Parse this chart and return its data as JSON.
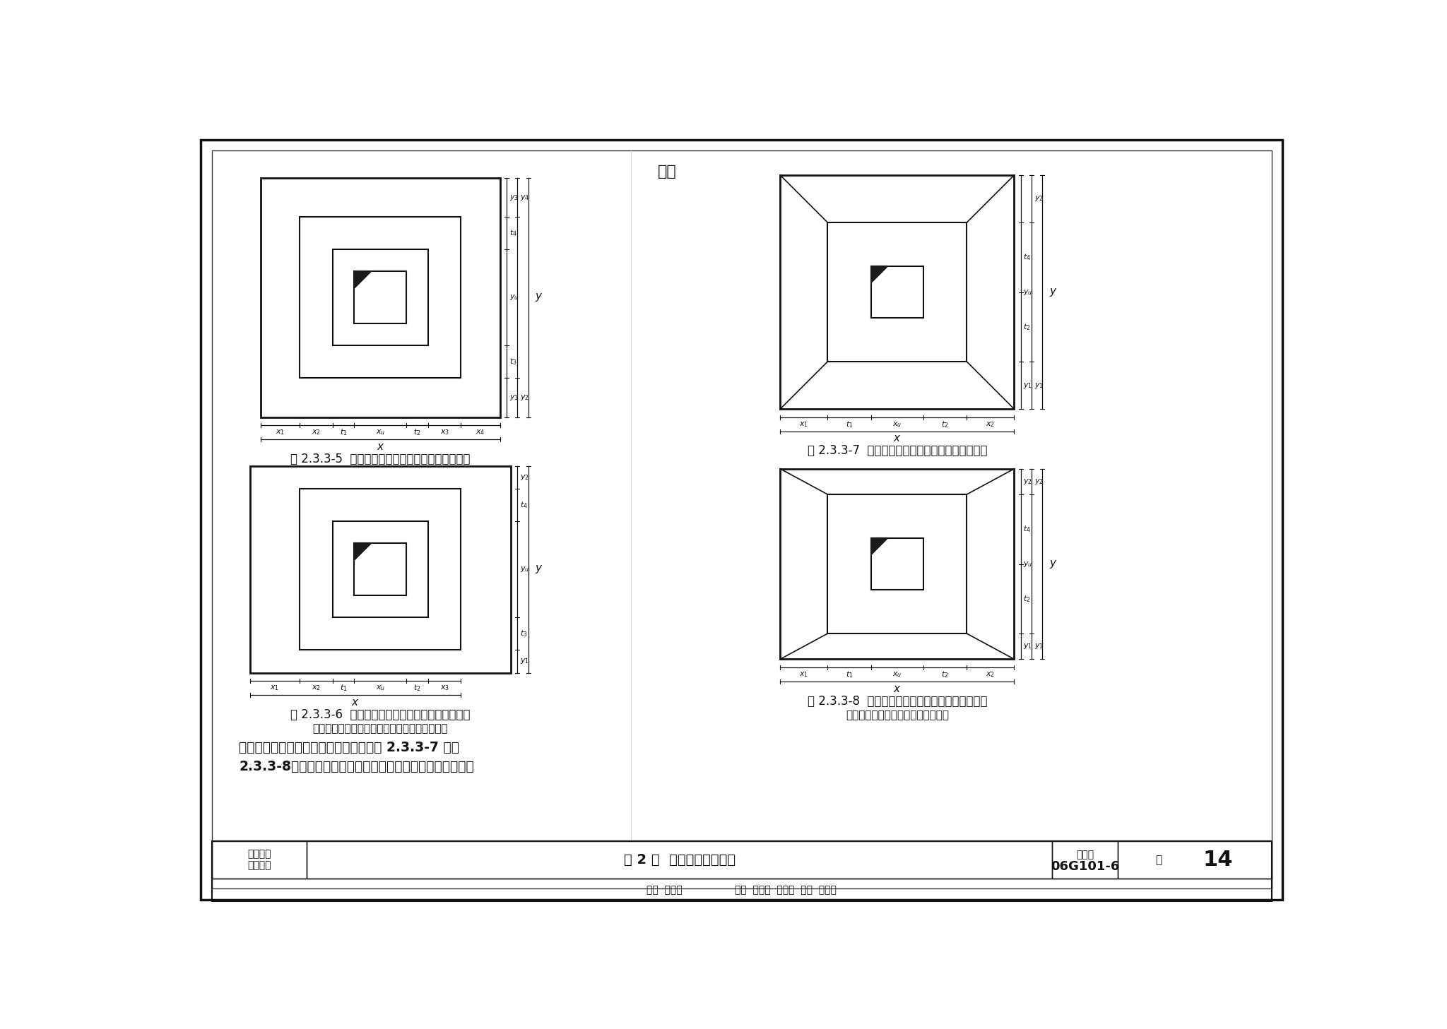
{
  "bg": "#ffffff",
  "lc": "#111111",
  "fig_captions": {
    "fig1": "图 2.3.3-5  阶形截面杯口独立基础原位标注（一）",
    "fig2": "图 2.3.3-6  阶形截面杯口独立基础原位标注（二）",
    "fig2_sub": "（本图所示基础底板的一边比其他三边多一阶）",
    "fig3": "图 2.3.3-7  坡形截面杯口独立基础原位标注（一）",
    "fig4": "图 2.3.3-8  坡形截面杯口独立基础原位标注（二）",
    "fig4_sub": "（本图所示基础底板有两边不放坡）"
  },
  "top_text": "同。",
  "bp1": "坡形截面杯口独立基础的原位标注，见图 2.3.3-7 和图",
  "bp2": "2.3.3-8。高杯口独立基础的原位标注与杯口独立基础完全相",
  "bar_chapter": "第一部分\n制图规则",
  "bar_section": "第 2 章  独立基础制图规则",
  "bar_figid_label": "图集号",
  "bar_figid_val": "06G101-6",
  "bar_page_label": "页",
  "bar_page_num": "14",
  "author_text": "审核  陈座琴                 校对  刘其祥  则基珅  设计  陈青来"
}
